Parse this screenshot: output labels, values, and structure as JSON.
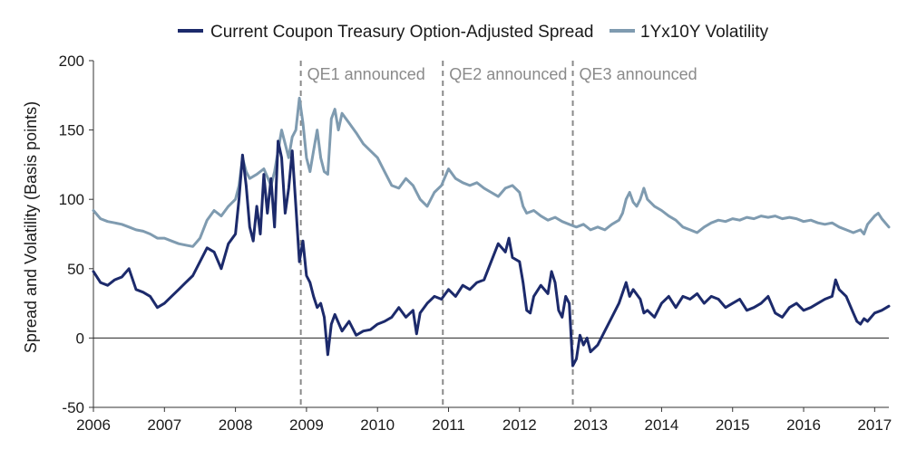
{
  "chart_data": {
    "type": "line",
    "title": "",
    "xlabel": "",
    "ylabel": "Spread and Volatility (Basis points)",
    "xlim": [
      2006,
      2017.2
    ],
    "ylim": [
      -50,
      200
    ],
    "yticks": [
      -50,
      0,
      50,
      100,
      150,
      200
    ],
    "yticklabels": [
      "-50",
      "0",
      "50",
      "100",
      "150",
      "200"
    ],
    "xticks": [
      2006,
      2007,
      2008,
      2009,
      2010,
      2011,
      2012,
      2013,
      2014,
      2015,
      2016,
      2017
    ],
    "xticklabels": [
      "2006",
      "2007",
      "2008",
      "2009",
      "2010",
      "2011",
      "2012",
      "2013",
      "2014",
      "2015",
      "2016",
      "2017"
    ],
    "grid": false,
    "legend_position": "top",
    "series": [
      {
        "name": "Current Coupon Treasury  Option-Adjusted Spread",
        "color": "#1c2a6b",
        "points": [
          [
            2006.0,
            48
          ],
          [
            2006.1,
            40
          ],
          [
            2006.2,
            38
          ],
          [
            2006.3,
            42
          ],
          [
            2006.4,
            44
          ],
          [
            2006.5,
            50
          ],
          [
            2006.6,
            35
          ],
          [
            2006.7,
            33
          ],
          [
            2006.8,
            30
          ],
          [
            2006.9,
            22
          ],
          [
            2007.0,
            25
          ],
          [
            2007.1,
            30
          ],
          [
            2007.2,
            35
          ],
          [
            2007.3,
            40
          ],
          [
            2007.4,
            45
          ],
          [
            2007.5,
            55
          ],
          [
            2007.6,
            65
          ],
          [
            2007.7,
            62
          ],
          [
            2007.8,
            50
          ],
          [
            2007.9,
            68
          ],
          [
            2008.0,
            75
          ],
          [
            2008.05,
            100
          ],
          [
            2008.1,
            132
          ],
          [
            2008.15,
            110
          ],
          [
            2008.2,
            80
          ],
          [
            2008.25,
            70
          ],
          [
            2008.3,
            95
          ],
          [
            2008.35,
            75
          ],
          [
            2008.4,
            118
          ],
          [
            2008.45,
            90
          ],
          [
            2008.5,
            115
          ],
          [
            2008.55,
            80
          ],
          [
            2008.6,
            142
          ],
          [
            2008.65,
            130
          ],
          [
            2008.7,
            90
          ],
          [
            2008.75,
            108
          ],
          [
            2008.8,
            135
          ],
          [
            2008.85,
            95
          ],
          [
            2008.9,
            55
          ],
          [
            2008.95,
            70
          ],
          [
            2009.0,
            45
          ],
          [
            2009.05,
            40
          ],
          [
            2009.1,
            30
          ],
          [
            2009.15,
            22
          ],
          [
            2009.2,
            25
          ],
          [
            2009.25,
            15
          ],
          [
            2009.3,
            -12
          ],
          [
            2009.35,
            10
          ],
          [
            2009.4,
            17
          ],
          [
            2009.5,
            5
          ],
          [
            2009.6,
            12
          ],
          [
            2009.7,
            2
          ],
          [
            2009.8,
            5
          ],
          [
            2009.9,
            6
          ],
          [
            2010.0,
            10
          ],
          [
            2010.1,
            12
          ],
          [
            2010.2,
            15
          ],
          [
            2010.3,
            22
          ],
          [
            2010.4,
            15
          ],
          [
            2010.5,
            20
          ],
          [
            2010.55,
            3
          ],
          [
            2010.6,
            18
          ],
          [
            2010.7,
            25
          ],
          [
            2010.8,
            30
          ],
          [
            2010.9,
            28
          ],
          [
            2011.0,
            35
          ],
          [
            2011.1,
            30
          ],
          [
            2011.2,
            38
          ],
          [
            2011.3,
            35
          ],
          [
            2011.4,
            40
          ],
          [
            2011.5,
            42
          ],
          [
            2011.6,
            55
          ],
          [
            2011.7,
            68
          ],
          [
            2011.8,
            62
          ],
          [
            2011.85,
            72
          ],
          [
            2011.9,
            58
          ],
          [
            2012.0,
            55
          ],
          [
            2012.05,
            40
          ],
          [
            2012.1,
            20
          ],
          [
            2012.15,
            18
          ],
          [
            2012.2,
            30
          ],
          [
            2012.3,
            38
          ],
          [
            2012.4,
            32
          ],
          [
            2012.45,
            48
          ],
          [
            2012.5,
            40
          ],
          [
            2012.55,
            20
          ],
          [
            2012.6,
            15
          ],
          [
            2012.65,
            30
          ],
          [
            2012.7,
            25
          ],
          [
            2012.75,
            -20
          ],
          [
            2012.8,
            -15
          ],
          [
            2012.85,
            2
          ],
          [
            2012.9,
            -5
          ],
          [
            2012.95,
            0
          ],
          [
            2013.0,
            -10
          ],
          [
            2013.1,
            -5
          ],
          [
            2013.2,
            5
          ],
          [
            2013.3,
            15
          ],
          [
            2013.4,
            25
          ],
          [
            2013.5,
            40
          ],
          [
            2013.55,
            30
          ],
          [
            2013.6,
            35
          ],
          [
            2013.7,
            28
          ],
          [
            2013.75,
            18
          ],
          [
            2013.8,
            20
          ],
          [
            2013.9,
            15
          ],
          [
            2014.0,
            25
          ],
          [
            2014.1,
            30
          ],
          [
            2014.2,
            22
          ],
          [
            2014.3,
            30
          ],
          [
            2014.4,
            28
          ],
          [
            2014.5,
            32
          ],
          [
            2014.6,
            25
          ],
          [
            2014.7,
            30
          ],
          [
            2014.8,
            28
          ],
          [
            2014.9,
            22
          ],
          [
            2015.0,
            25
          ],
          [
            2015.1,
            28
          ],
          [
            2015.2,
            20
          ],
          [
            2015.3,
            22
          ],
          [
            2015.4,
            25
          ],
          [
            2015.5,
            30
          ],
          [
            2015.6,
            18
          ],
          [
            2015.7,
            15
          ],
          [
            2015.8,
            22
          ],
          [
            2015.9,
            25
          ],
          [
            2016.0,
            20
          ],
          [
            2016.1,
            22
          ],
          [
            2016.2,
            25
          ],
          [
            2016.3,
            28
          ],
          [
            2016.4,
            30
          ],
          [
            2016.45,
            42
          ],
          [
            2016.5,
            35
          ],
          [
            2016.6,
            30
          ],
          [
            2016.7,
            18
          ],
          [
            2016.75,
            12
          ],
          [
            2016.8,
            10
          ],
          [
            2016.85,
            14
          ],
          [
            2016.9,
            12
          ],
          [
            2017.0,
            18
          ],
          [
            2017.1,
            20
          ],
          [
            2017.2,
            23
          ]
        ]
      },
      {
        "name": "1Yx10Y Volatility",
        "color": "#7f9bb0",
        "points": [
          [
            2006.0,
            92
          ],
          [
            2006.1,
            86
          ],
          [
            2006.2,
            84
          ],
          [
            2006.3,
            83
          ],
          [
            2006.4,
            82
          ],
          [
            2006.5,
            80
          ],
          [
            2006.6,
            78
          ],
          [
            2006.7,
            77
          ],
          [
            2006.8,
            75
          ],
          [
            2006.9,
            72
          ],
          [
            2007.0,
            72
          ],
          [
            2007.1,
            70
          ],
          [
            2007.2,
            68
          ],
          [
            2007.3,
            67
          ],
          [
            2007.4,
            66
          ],
          [
            2007.5,
            72
          ],
          [
            2007.6,
            85
          ],
          [
            2007.7,
            92
          ],
          [
            2007.8,
            88
          ],
          [
            2007.9,
            95
          ],
          [
            2008.0,
            100
          ],
          [
            2008.05,
            110
          ],
          [
            2008.1,
            130
          ],
          [
            2008.15,
            120
          ],
          [
            2008.2,
            115
          ],
          [
            2008.3,
            118
          ],
          [
            2008.4,
            122
          ],
          [
            2008.5,
            110
          ],
          [
            2008.55,
            120
          ],
          [
            2008.6,
            135
          ],
          [
            2008.65,
            150
          ],
          [
            2008.7,
            140
          ],
          [
            2008.75,
            130
          ],
          [
            2008.8,
            145
          ],
          [
            2008.85,
            150
          ],
          [
            2008.9,
            173
          ],
          [
            2008.95,
            155
          ],
          [
            2009.0,
            130
          ],
          [
            2009.05,
            120
          ],
          [
            2009.1,
            135
          ],
          [
            2009.15,
            150
          ],
          [
            2009.2,
            130
          ],
          [
            2009.25,
            120
          ],
          [
            2009.3,
            118
          ],
          [
            2009.35,
            158
          ],
          [
            2009.4,
            165
          ],
          [
            2009.45,
            150
          ],
          [
            2009.5,
            162
          ],
          [
            2009.6,
            155
          ],
          [
            2009.7,
            148
          ],
          [
            2009.8,
            140
          ],
          [
            2009.9,
            135
          ],
          [
            2010.0,
            130
          ],
          [
            2010.1,
            120
          ],
          [
            2010.2,
            110
          ],
          [
            2010.3,
            108
          ],
          [
            2010.4,
            115
          ],
          [
            2010.5,
            110
          ],
          [
            2010.6,
            100
          ],
          [
            2010.7,
            95
          ],
          [
            2010.8,
            105
          ],
          [
            2010.9,
            110
          ],
          [
            2011.0,
            122
          ],
          [
            2011.1,
            115
          ],
          [
            2011.2,
            112
          ],
          [
            2011.3,
            110
          ],
          [
            2011.4,
            112
          ],
          [
            2011.5,
            108
          ],
          [
            2011.6,
            105
          ],
          [
            2011.7,
            102
          ],
          [
            2011.8,
            108
          ],
          [
            2011.9,
            110
          ],
          [
            2012.0,
            105
          ],
          [
            2012.05,
            95
          ],
          [
            2012.1,
            90
          ],
          [
            2012.2,
            92
          ],
          [
            2012.3,
            88
          ],
          [
            2012.4,
            85
          ],
          [
            2012.5,
            87
          ],
          [
            2012.6,
            84
          ],
          [
            2012.7,
            82
          ],
          [
            2012.8,
            80
          ],
          [
            2012.9,
            82
          ],
          [
            2013.0,
            78
          ],
          [
            2013.1,
            80
          ],
          [
            2013.2,
            78
          ],
          [
            2013.3,
            82
          ],
          [
            2013.4,
            85
          ],
          [
            2013.45,
            90
          ],
          [
            2013.5,
            100
          ],
          [
            2013.55,
            105
          ],
          [
            2013.6,
            98
          ],
          [
            2013.65,
            95
          ],
          [
            2013.7,
            100
          ],
          [
            2013.75,
            108
          ],
          [
            2013.8,
            100
          ],
          [
            2013.9,
            95
          ],
          [
            2014.0,
            92
          ],
          [
            2014.1,
            88
          ],
          [
            2014.2,
            85
          ],
          [
            2014.3,
            80
          ],
          [
            2014.4,
            78
          ],
          [
            2014.5,
            76
          ],
          [
            2014.6,
            80
          ],
          [
            2014.7,
            83
          ],
          [
            2014.8,
            85
          ],
          [
            2014.9,
            84
          ],
          [
            2015.0,
            86
          ],
          [
            2015.1,
            85
          ],
          [
            2015.2,
            87
          ],
          [
            2015.3,
            86
          ],
          [
            2015.4,
            88
          ],
          [
            2015.5,
            87
          ],
          [
            2015.6,
            88
          ],
          [
            2015.7,
            86
          ],
          [
            2015.8,
            87
          ],
          [
            2015.9,
            86
          ],
          [
            2016.0,
            84
          ],
          [
            2016.1,
            85
          ],
          [
            2016.2,
            83
          ],
          [
            2016.3,
            82
          ],
          [
            2016.4,
            83
          ],
          [
            2016.5,
            80
          ],
          [
            2016.6,
            78
          ],
          [
            2016.7,
            76
          ],
          [
            2016.8,
            78
          ],
          [
            2016.85,
            75
          ],
          [
            2016.9,
            82
          ],
          [
            2017.0,
            88
          ],
          [
            2017.05,
            90
          ],
          [
            2017.1,
            86
          ],
          [
            2017.2,
            80
          ]
        ]
      }
    ],
    "annotations": [
      {
        "x": 2008.92,
        "text": "QE1 announced"
      },
      {
        "x": 2010.92,
        "text": "QE2 announced"
      },
      {
        "x": 2012.75,
        "text": "QE3 announced"
      }
    ]
  }
}
